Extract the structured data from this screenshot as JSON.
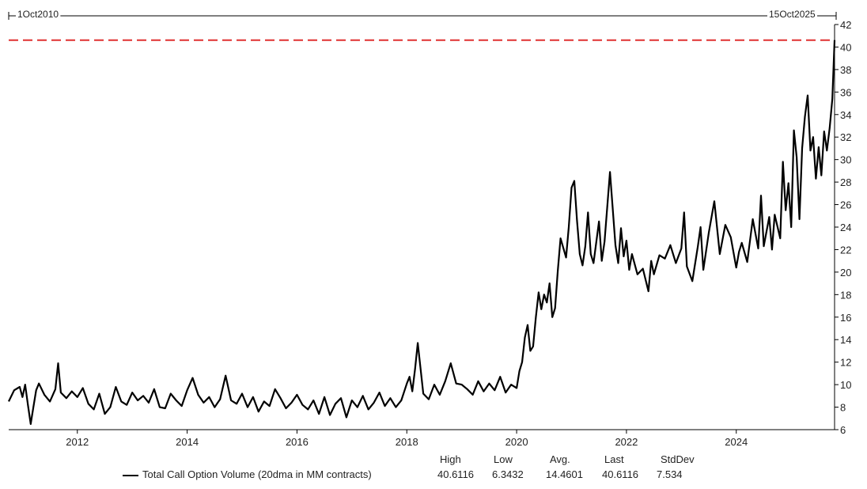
{
  "chart_data": {
    "type": "line",
    "title": "",
    "xlabel": "",
    "ylabel": "",
    "start_label": "1Oct2010",
    "end_label": "15Oct2025",
    "x_range": [
      2010.75,
      2025.79
    ],
    "ylim": [
      6,
      42
    ],
    "y_ticks": [
      6,
      8,
      10,
      12,
      14,
      16,
      18,
      20,
      22,
      24,
      26,
      28,
      30,
      32,
      34,
      36,
      38,
      40,
      42
    ],
    "x_ticks": [
      2012,
      2014,
      2016,
      2018,
      2020,
      2022,
      2024
    ],
    "x_tick_labels": [
      "2012",
      "2014",
      "2016",
      "2018",
      "2020",
      "2022",
      "2024"
    ],
    "reference_line": {
      "value": 40.6116,
      "color": "#e03030",
      "style": "dashed"
    },
    "series": [
      {
        "name": "Total Call Option Volume (20dma in MM contracts)",
        "color": "#000000",
        "x": [
          2010.75,
          2010.85,
          2010.95,
          2011.0,
          2011.05,
          2011.1,
          2011.15,
          2011.2,
          2011.25,
          2011.3,
          2011.4,
          2011.5,
          2011.6,
          2011.65,
          2011.7,
          2011.8,
          2011.9,
          2012.0,
          2012.1,
          2012.2,
          2012.3,
          2012.4,
          2012.5,
          2012.6,
          2012.7,
          2012.8,
          2012.9,
          2013.0,
          2013.1,
          2013.2,
          2013.3,
          2013.4,
          2013.5,
          2013.6,
          2013.7,
          2013.8,
          2013.9,
          2014.0,
          2014.1,
          2014.2,
          2014.3,
          2014.4,
          2014.5,
          2014.6,
          2014.7,
          2014.8,
          2014.9,
          2015.0,
          2015.1,
          2015.2,
          2015.3,
          2015.4,
          2015.5,
          2015.6,
          2015.7,
          2015.8,
          2015.9,
          2016.0,
          2016.1,
          2016.2,
          2016.3,
          2016.4,
          2016.5,
          2016.6,
          2016.7,
          2016.8,
          2016.9,
          2017.0,
          2017.1,
          2017.2,
          2017.3,
          2017.4,
          2017.5,
          2017.6,
          2017.7,
          2017.8,
          2017.9,
          2018.0,
          2018.05,
          2018.1,
          2018.15,
          2018.2,
          2018.3,
          2018.4,
          2018.5,
          2018.6,
          2018.7,
          2018.8,
          2018.9,
          2019.0,
          2019.1,
          2019.2,
          2019.3,
          2019.4,
          2019.5,
          2019.6,
          2019.7,
          2019.8,
          2019.9,
          2020.0,
          2020.05,
          2020.1,
          2020.15,
          2020.2,
          2020.25,
          2020.3,
          2020.35,
          2020.4,
          2020.45,
          2020.5,
          2020.55,
          2020.6,
          2020.65,
          2020.7,
          2020.75,
          2020.8,
          2020.9,
          2020.95,
          2021.0,
          2021.05,
          2021.1,
          2021.15,
          2021.2,
          2021.25,
          2021.3,
          2021.35,
          2021.4,
          2021.5,
          2021.55,
          2021.6,
          2021.7,
          2021.8,
          2021.85,
          2021.9,
          2021.95,
          2022.0,
          2022.05,
          2022.1,
          2022.2,
          2022.3,
          2022.4,
          2022.45,
          2022.5,
          2022.6,
          2022.7,
          2022.8,
          2022.9,
          2023.0,
          2023.05,
          2023.1,
          2023.2,
          2023.3,
          2023.35,
          2023.4,
          2023.5,
          2023.6,
          2023.7,
          2023.8,
          2023.9,
          2024.0,
          2024.05,
          2024.1,
          2024.2,
          2024.3,
          2024.4,
          2024.45,
          2024.5,
          2024.6,
          2024.65,
          2024.7,
          2024.8,
          2024.85,
          2024.9,
          2024.95,
          2025.0,
          2025.05,
          2025.1,
          2025.15,
          2025.2,
          2025.25,
          2025.3,
          2025.35,
          2025.4,
          2025.45,
          2025.5,
          2025.55,
          2025.6,
          2025.65,
          2025.7,
          2025.75,
          2025.79
        ],
        "values": [
          8.5,
          9.5,
          9.8,
          8.9,
          10.0,
          8.2,
          6.5,
          8.0,
          9.5,
          10.1,
          9.1,
          8.5,
          9.6,
          11.9,
          9.3,
          8.8,
          9.4,
          8.9,
          9.7,
          8.3,
          7.8,
          9.2,
          7.4,
          8.0,
          9.8,
          8.5,
          8.2,
          9.3,
          8.6,
          9.0,
          8.4,
          9.6,
          8.0,
          7.9,
          9.2,
          8.6,
          8.1,
          9.5,
          10.6,
          9.1,
          8.4,
          8.9,
          8.0,
          8.7,
          10.8,
          8.6,
          8.3,
          9.2,
          8.0,
          8.9,
          7.6,
          8.5,
          8.1,
          9.6,
          8.8,
          7.9,
          8.4,
          9.1,
          8.2,
          7.8,
          8.6,
          7.4,
          8.9,
          7.3,
          8.3,
          8.8,
          7.1,
          8.6,
          8.0,
          9.0,
          7.8,
          8.4,
          9.3,
          8.1,
          8.8,
          8.0,
          8.6,
          10.1,
          10.7,
          9.4,
          11.4,
          13.7,
          9.2,
          8.7,
          10.0,
          9.1,
          10.3,
          11.9,
          10.1,
          10.0,
          9.6,
          9.1,
          10.3,
          9.4,
          10.1,
          9.5,
          10.7,
          9.3,
          10.0,
          9.7,
          11.2,
          12.0,
          14.2,
          15.3,
          13.0,
          13.4,
          16.0,
          18.2,
          16.7,
          18.0,
          17.3,
          19.0,
          16.0,
          16.8,
          20.1,
          23.0,
          21.3,
          24.0,
          27.5,
          28.1,
          24.6,
          21.6,
          20.6,
          22.3,
          25.3,
          21.6,
          20.8,
          24.5,
          21.0,
          22.7,
          28.9,
          22.4,
          20.8,
          23.9,
          21.4,
          22.8,
          20.2,
          21.6,
          19.8,
          20.3,
          18.3,
          21.0,
          19.8,
          21.5,
          21.2,
          22.4,
          20.8,
          22.1,
          25.3,
          20.5,
          19.2,
          22.3,
          24.0,
          20.2,
          23.5,
          26.3,
          21.6,
          24.2,
          23.1,
          20.4,
          21.8,
          22.6,
          20.9,
          24.7,
          22.1,
          26.8,
          22.3,
          24.9,
          22.0,
          25.1,
          23.0,
          29.8,
          25.5,
          27.9,
          24.0,
          32.6,
          30.2,
          24.7,
          31.0,
          33.8,
          35.7,
          30.8,
          32.0,
          28.3,
          31.1,
          28.6,
          32.5,
          30.8,
          32.8,
          35.4,
          40.6116
        ]
      }
    ],
    "stats": {
      "legend_label": "Total Call Option Volume (20dma in MM contracts)",
      "headers": [
        "High",
        "Low",
        "Avg.",
        "Last",
        "StdDev"
      ],
      "values": [
        "40.6116",
        "6.3432",
        "14.4601",
        "40.6116",
        "7.534"
      ]
    }
  }
}
